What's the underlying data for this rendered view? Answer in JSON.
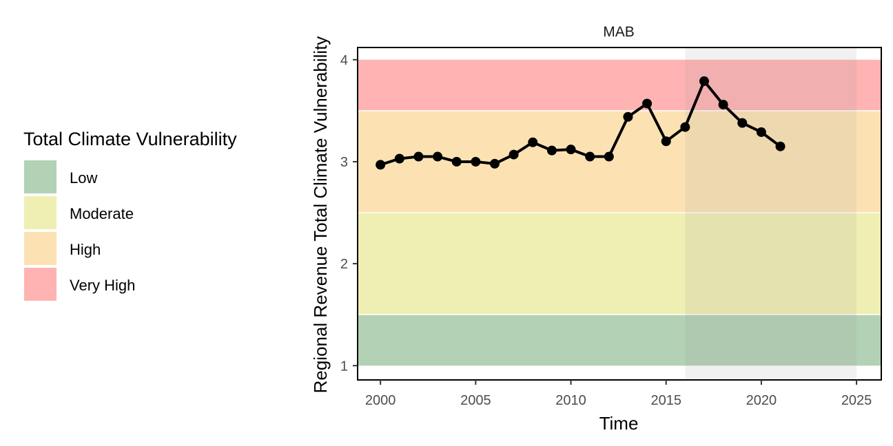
{
  "chart_data": {
    "type": "line",
    "panel_title": "MAB",
    "xlabel": "Time",
    "ylabel": "Regional Revenue Total Climate Vulnerability",
    "xlim": [
      1998.8,
      2026.3
    ],
    "ylim": [
      0.86,
      4.12
    ],
    "x_ticks": [
      "2000",
      "2005",
      "2010",
      "2015",
      "2020",
      "2025"
    ],
    "y_ticks": [
      "1",
      "2",
      "3",
      "4"
    ],
    "grid": false,
    "shaded_period": [
      2016,
      2025
    ],
    "bands": [
      {
        "label": "Low",
        "from": 1.0,
        "to": 1.5,
        "color": "#b3d1b4"
      },
      {
        "label": "Moderate",
        "from": 1.5,
        "to": 2.5,
        "color": "#f0efb3"
      },
      {
        "label": "High",
        "from": 2.5,
        "to": 3.5,
        "color": "#fce2b3"
      },
      {
        "label": "Very High",
        "from": 3.5,
        "to": 4.0,
        "color": "#ffb3b3"
      }
    ],
    "legend": {
      "title": "Total Climate Vulnerability",
      "position": "left",
      "entries": [
        "Low",
        "Moderate",
        "High",
        "Very High"
      ]
    },
    "series": [
      {
        "x": [
          2000,
          2001,
          2002,
          2003,
          2004,
          2005,
          2006,
          2007,
          2008,
          2009,
          2010,
          2011,
          2012,
          2013,
          2014,
          2015,
          2016,
          2017,
          2018,
          2019,
          2020,
          2021
        ],
        "values": [
          2.97,
          3.03,
          3.05,
          3.05,
          3.0,
          3.0,
          2.98,
          3.07,
          3.19,
          3.11,
          3.12,
          3.05,
          3.05,
          3.44,
          3.57,
          3.2,
          3.34,
          3.79,
          3.56,
          3.38,
          3.29,
          3.15
        ],
        "color": "#000000"
      }
    ]
  }
}
